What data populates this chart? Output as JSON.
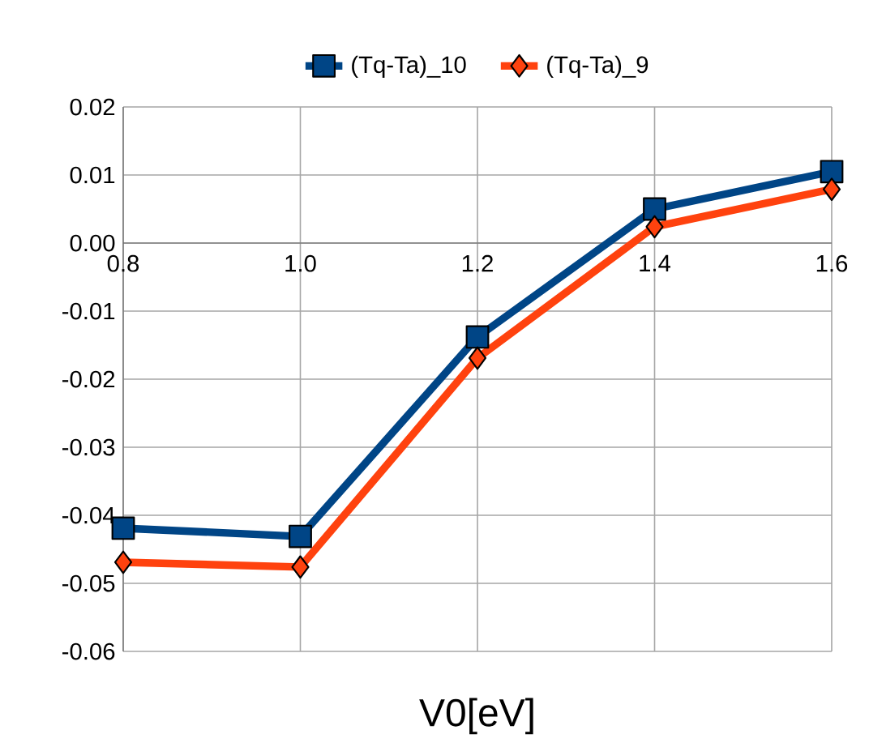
{
  "chart_data": {
    "type": "line",
    "xlabel": "V0[eV]",
    "x": [
      0.8,
      1.0,
      1.2,
      1.4,
      1.6
    ],
    "series": [
      {
        "name": "(Tq-Ta)_10",
        "color": "#004586",
        "marker": "square",
        "values": [
          -0.0419,
          -0.0431,
          -0.0138,
          0.005,
          0.0105
        ]
      },
      {
        "name": "(Tq-Ta)_9",
        "color": "#ff420e",
        "marker": "diamond",
        "values": [
          -0.0469,
          -0.0476,
          -0.0169,
          0.0024,
          0.0079
        ]
      }
    ],
    "xlim": [
      0.8,
      1.6
    ],
    "xticks": [
      {
        "value": 0.8,
        "label": "0.8"
      },
      {
        "value": 1.0,
        "label": "1.0"
      },
      {
        "value": 1.2,
        "label": "1.2"
      },
      {
        "value": 1.4,
        "label": "1.4"
      },
      {
        "value": 1.6,
        "label": "1.6"
      }
    ],
    "ylim": [
      -0.06,
      0.02
    ],
    "yticks": [
      {
        "value": -0.06,
        "label": "-0.06"
      },
      {
        "value": -0.05,
        "label": "-0.05"
      },
      {
        "value": -0.04,
        "label": "-0.04"
      },
      {
        "value": -0.03,
        "label": "-0.03"
      },
      {
        "value": -0.02,
        "label": "-0.02"
      },
      {
        "value": -0.01,
        "label": "-0.01"
      },
      {
        "value": 0.0,
        "label": "0.00"
      },
      {
        "value": 0.01,
        "label": "0.01"
      },
      {
        "value": 0.02,
        "label": "0.02"
      }
    ],
    "grid": true,
    "legend": "top",
    "line_style": "solid"
  }
}
